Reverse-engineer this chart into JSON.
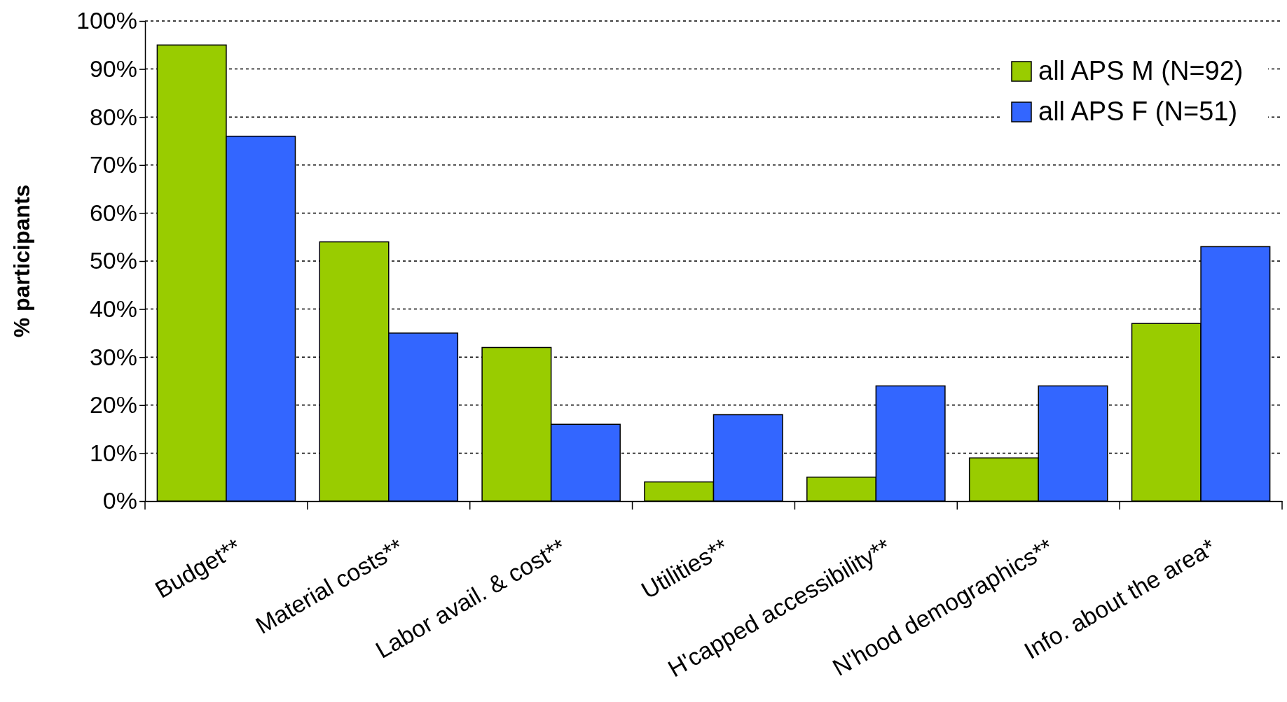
{
  "chart_data": {
    "type": "bar",
    "ylabel": "% participants",
    "categories": [
      "Budget**",
      "Material costs**",
      "Labor avail. & cost**",
      "Utilities**",
      "H'capped accessibility**",
      "N'hood demographics**",
      "Info. about the area*"
    ],
    "series": [
      {
        "name": "all APS M (N=92)",
        "color": "#99cc00",
        "values": [
          95,
          54,
          32,
          4,
          5,
          9,
          37
        ]
      },
      {
        "name": "all APS F (N=51)",
        "color": "#3366ff",
        "values": [
          76,
          35,
          16,
          18,
          24,
          24,
          53
        ]
      }
    ],
    "ylim": [
      0,
      100
    ],
    "yticks": [
      {
        "value": 0,
        "label": "0%"
      },
      {
        "value": 10,
        "label": "10%"
      },
      {
        "value": 20,
        "label": "20%"
      },
      {
        "value": 30,
        "label": "30%"
      },
      {
        "value": 40,
        "label": "40%"
      },
      {
        "value": 50,
        "label": "50%"
      },
      {
        "value": 60,
        "label": "60%"
      },
      {
        "value": 70,
        "label": "70%"
      },
      {
        "value": 80,
        "label": "80%"
      },
      {
        "value": 90,
        "label": "90%"
      },
      {
        "value": 100,
        "label": "100%"
      }
    ],
    "grid": "y",
    "legend": "top right"
  }
}
